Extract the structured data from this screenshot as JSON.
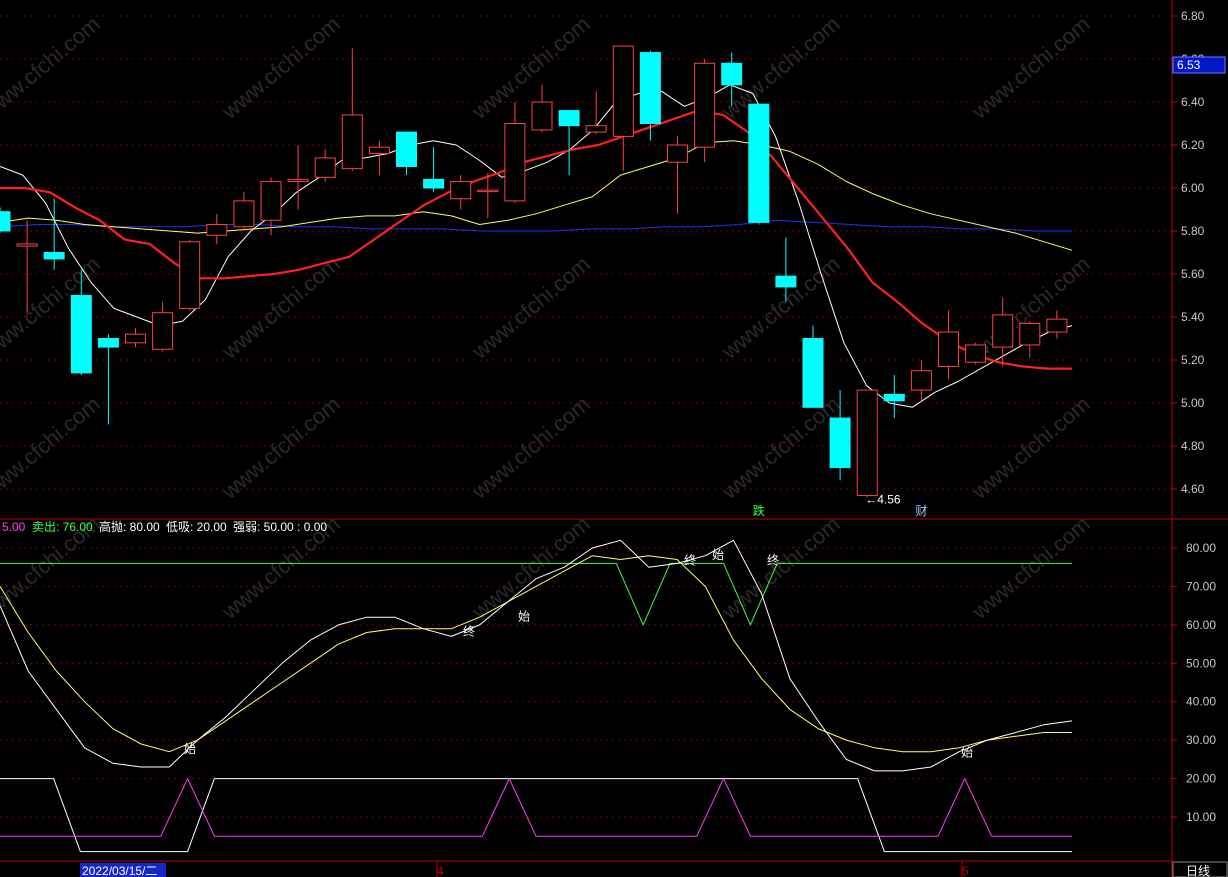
{
  "legend": {
    "items": [
      {
        "label": "5.00",
        "color": "#ff40ff"
      },
      {
        "label": "卖出: 76.00",
        "color": "#40ff40"
      },
      {
        "label": "高抛: 80.00",
        "color": "#ffffff"
      },
      {
        "label": "低吸: 20.00",
        "color": "#ffffff"
      },
      {
        "label": "强弱: 50.00 : 0.00",
        "color": "#ffffff"
      }
    ]
  },
  "price_badge": "6.53",
  "date_label": "2022/03/15/二",
  "month_labels": [
    "4",
    "5"
  ],
  "period_button": "日线",
  "watermark_text": "www.cfchi.com",
  "colors": {
    "up": "#ff4040",
    "down": "#00ffff",
    "ma_red": "#ff2020",
    "ma_white": "#ffffff",
    "ma_yellow": "#ffff60",
    "ma_blue": "#2030ff",
    "axis": "#c00000",
    "grid": "#7a0000",
    "osc_green": "#40ff40",
    "osc_magenta": "#ff40ff"
  },
  "chart_data": [
    {
      "type": "candlestick",
      "ylim": [
        4.5,
        6.85
      ],
      "yticks": [
        4.6,
        4.8,
        5.0,
        5.2,
        5.4,
        5.6,
        5.8,
        6.0,
        6.2,
        6.4,
        6.6,
        6.8
      ],
      "tick_labels": [
        "4.60",
        "4.80",
        "5.00",
        "5.20",
        "5.40",
        "5.60",
        "5.80",
        "6.00",
        "6.20",
        "6.40",
        "6.60",
        "6.80"
      ],
      "candles": [
        {
          "o": 5.89,
          "c": 5.8,
          "h": 5.91,
          "l": 5.79
        },
        {
          "o": 5.73,
          "c": 5.74,
          "h": 5.85,
          "l": 5.42
        },
        {
          "o": 5.7,
          "c": 5.67,
          "h": 5.95,
          "l": 5.62
        },
        {
          "o": 5.5,
          "c": 5.14,
          "h": 5.62,
          "l": 5.13
        },
        {
          "o": 5.3,
          "c": 5.26,
          "h": 5.32,
          "l": 4.9
        },
        {
          "o": 5.28,
          "c": 5.32,
          "h": 5.35,
          "l": 5.26
        },
        {
          "o": 5.25,
          "c": 5.42,
          "h": 5.47,
          "l": 5.24
        },
        {
          "o": 5.44,
          "c": 5.75,
          "h": 5.76,
          "l": 5.43
        },
        {
          "o": 5.78,
          "c": 5.83,
          "h": 5.88,
          "l": 5.74
        },
        {
          "o": 5.82,
          "c": 5.94,
          "h": 5.98,
          "l": 5.8
        },
        {
          "o": 5.85,
          "c": 6.03,
          "h": 6.05,
          "l": 5.78
        },
        {
          "o": 6.03,
          "c": 6.04,
          "h": 6.2,
          "l": 5.9
        },
        {
          "o": 6.05,
          "c": 6.14,
          "h": 6.18,
          "l": 6.03
        },
        {
          "o": 6.09,
          "c": 6.34,
          "h": 6.65,
          "l": 6.08
        },
        {
          "o": 6.16,
          "c": 6.19,
          "h": 6.22,
          "l": 6.06
        },
        {
          "o": 6.26,
          "c": 6.1,
          "h": 6.26,
          "l": 6.06
        },
        {
          "o": 6.04,
          "c": 6.0,
          "h": 6.19,
          "l": 5.98
        },
        {
          "o": 5.95,
          "c": 6.03,
          "h": 6.06,
          "l": 5.9
        },
        {
          "o": 5.99,
          "c": 5.99,
          "h": 6.07,
          "l": 5.86
        },
        {
          "o": 5.94,
          "c": 6.3,
          "h": 6.4,
          "l": 5.93
        },
        {
          "o": 6.27,
          "c": 6.4,
          "h": 6.48,
          "l": 6.26
        },
        {
          "o": 6.36,
          "c": 6.29,
          "h": 6.36,
          "l": 6.06
        },
        {
          "o": 6.26,
          "c": 6.29,
          "h": 6.45,
          "l": 6.25
        },
        {
          "o": 6.24,
          "c": 6.66,
          "h": 6.66,
          "l": 6.08
        },
        {
          "o": 6.63,
          "c": 6.3,
          "h": 6.64,
          "l": 6.22
        },
        {
          "o": 6.12,
          "c": 6.2,
          "h": 6.24,
          "l": 5.88
        },
        {
          "o": 6.19,
          "c": 6.58,
          "h": 6.6,
          "l": 6.12
        },
        {
          "o": 6.58,
          "c": 6.48,
          "h": 6.63,
          "l": 6.38
        },
        {
          "o": 6.39,
          "c": 5.84,
          "h": 6.39,
          "l": 5.83
        },
        {
          "o": 5.59,
          "c": 5.54,
          "h": 5.77,
          "l": 5.47
        },
        {
          "o": 5.3,
          "c": 4.98,
          "h": 5.36,
          "l": 4.98
        },
        {
          "o": 4.93,
          "c": 4.7,
          "h": 5.06,
          "l": 4.64
        },
        {
          "o": 4.57,
          "c": 5.06,
          "h": 5.06,
          "l": 4.56
        },
        {
          "o": 5.04,
          "c": 5.01,
          "h": 5.13,
          "l": 4.93
        },
        {
          "o": 5.06,
          "c": 5.15,
          "h": 5.2,
          "l": 5.01
        },
        {
          "o": 5.17,
          "c": 5.33,
          "h": 5.43,
          "l": 5.11
        },
        {
          "o": 5.19,
          "c": 5.27,
          "h": 5.28,
          "l": 5.18
        },
        {
          "o": 5.26,
          "c": 5.41,
          "h": 5.49,
          "l": 5.17
        },
        {
          "o": 5.27,
          "c": 5.37,
          "h": 5.38,
          "l": 5.21
        },
        {
          "o": 5.33,
          "c": 5.39,
          "h": 5.43,
          "l": 5.3
        }
      ],
      "ma_red": [
        6.0,
        6.0,
        5.98,
        5.91,
        5.85,
        5.76,
        5.74,
        5.65,
        5.58,
        5.58,
        5.59,
        5.6,
        5.62,
        5.65,
        5.68,
        5.76,
        5.84,
        5.92,
        5.98,
        6.03,
        6.07,
        6.12,
        6.15,
        6.18,
        6.2,
        6.24,
        6.28,
        6.32,
        6.36,
        6.34,
        6.26,
        6.14,
        6.0,
        5.86,
        5.72,
        5.56,
        5.47,
        5.37,
        5.29,
        5.23,
        5.19,
        5.17,
        5.16,
        5.16
      ],
      "ma_white": [
        6.1,
        6.06,
        5.93,
        5.72,
        5.56,
        5.44,
        5.4,
        5.36,
        5.38,
        5.48,
        5.68,
        5.8,
        5.88,
        5.98,
        6.05,
        6.13,
        6.14,
        6.16,
        6.2,
        6.22,
        6.2,
        6.13,
        6.05,
        6.08,
        6.12,
        6.18,
        6.27,
        6.4,
        6.44,
        6.45,
        6.38,
        6.42,
        6.48,
        6.44,
        6.24,
        5.94,
        5.6,
        5.28,
        5.08,
        5.0,
        4.98,
        5.05,
        5.1,
        5.16,
        5.22,
        5.28,
        5.33,
        5.36
      ],
      "ma_yellow": [
        5.84,
        5.86,
        5.85,
        5.83,
        5.82,
        5.81,
        5.8,
        5.79,
        5.8,
        5.81,
        5.82,
        5.84,
        5.86,
        5.87,
        5.87,
        5.89,
        5.87,
        5.83,
        5.85,
        5.88,
        5.92,
        5.96,
        6.06,
        6.1,
        6.14,
        6.21,
        6.22,
        6.2,
        6.17,
        6.11,
        6.03,
        5.97,
        5.92,
        5.88,
        5.85,
        5.82,
        5.79,
        5.75,
        5.71
      ],
      "ma_blue": [
        5.82,
        5.83,
        5.83,
        5.82,
        5.82,
        5.82,
        5.83,
        5.83,
        5.82,
        5.82,
        5.81,
        5.81,
        5.81,
        5.8,
        5.8,
        5.8,
        5.81,
        5.81,
        5.82,
        5.82,
        5.83,
        5.85,
        5.84,
        5.83,
        5.82,
        5.82,
        5.81,
        5.81,
        5.8,
        5.8
      ],
      "annotations": [
        {
          "text": "←4.56",
          "value": 4.56,
          "index": 32
        },
        {
          "text": "跌",
          "index": 28
        },
        {
          "text": "财",
          "index": 34
        }
      ]
    },
    {
      "type": "line",
      "ylim": [
        -3,
        85
      ],
      "yticks": [
        10,
        20,
        30,
        40,
        50,
        60,
        70,
        80
      ],
      "tick_labels": [
        "10.00",
        "20.00",
        "30.00",
        "40.00",
        "50.00",
        "60.00",
        "70.00",
        "80.00"
      ],
      "sell_line": [
        76,
        76,
        76,
        76,
        76,
        76,
        76,
        76,
        76,
        76,
        76,
        76,
        76,
        76,
        76,
        76,
        76,
        76,
        76,
        76,
        76,
        76,
        76,
        76,
        60,
        76,
        76,
        76,
        60,
        76,
        76,
        76,
        76,
        76,
        76,
        76,
        76,
        76,
        76,
        76,
        76
      ],
      "white": [
        65,
        48,
        38,
        28,
        24,
        23,
        23,
        30,
        36,
        43,
        50,
        56,
        60,
        62,
        62,
        59,
        57,
        60,
        66,
        72,
        75,
        80,
        82,
        75,
        76,
        78,
        82,
        68,
        46,
        35,
        25,
        22,
        22,
        23,
        27,
        30,
        32,
        34,
        35
      ],
      "yellow": [
        70,
        58,
        48,
        40,
        33,
        29,
        27,
        30,
        35,
        40,
        45,
        50,
        55,
        58,
        59,
        59,
        59,
        62,
        66,
        70,
        74,
        78,
        77,
        78,
        77,
        70,
        56,
        46,
        38,
        33,
        30,
        28,
        27,
        27,
        28,
        30,
        31,
        32,
        32
      ],
      "lower_white": [
        20,
        20,
        20,
        1,
        1,
        1,
        1,
        1,
        20,
        20,
        20,
        20,
        20,
        20,
        20,
        20,
        20,
        20,
        20,
        20,
        20,
        20,
        20,
        20,
        20,
        20,
        20,
        20,
        20,
        20,
        20,
        20,
        20,
        1,
        1,
        1,
        1,
        1,
        1,
        1,
        1
      ],
      "lower_magenta": [
        5,
        5,
        5,
        5,
        5,
        5,
        5,
        20,
        5,
        5,
        5,
        5,
        5,
        5,
        5,
        5,
        5,
        5,
        5,
        20,
        5,
        5,
        5,
        5,
        5,
        5,
        5,
        20,
        5,
        5,
        5,
        5,
        5,
        5,
        5,
        5,
        20,
        5,
        5,
        5,
        5
      ],
      "markers": [
        {
          "text": "始",
          "value": 28
        },
        {
          "text": "终",
          "value": 58.5
        },
        {
          "text": "始",
          "value": 62.5
        },
        {
          "text": "终",
          "value": 77
        },
        {
          "text": "始",
          "value": 78.5
        },
        {
          "text": "终",
          "value": 77
        },
        {
          "text": "始",
          "value": 27
        }
      ]
    }
  ]
}
